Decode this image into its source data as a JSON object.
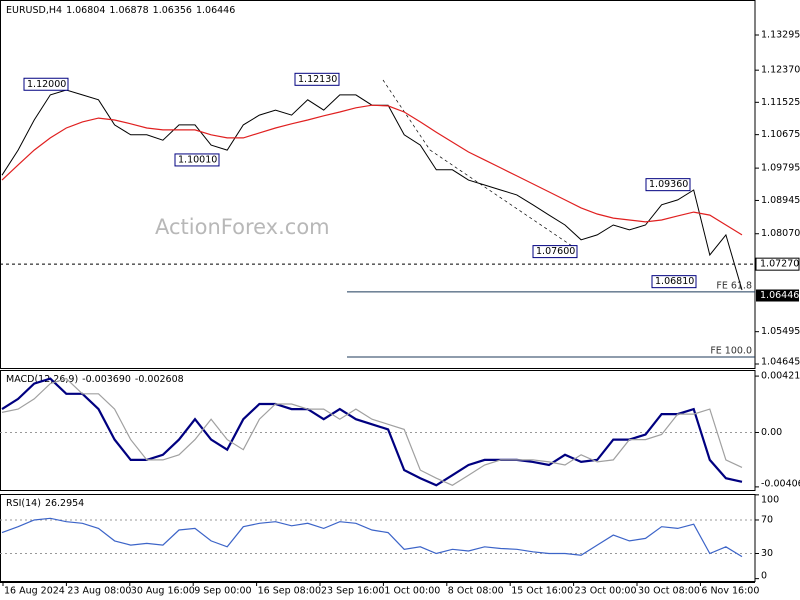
{
  "chart_data": [
    {
      "type": "line",
      "title": "EURUSD,H4",
      "ohlc": [
        1.06804,
        1.06878,
        1.06356,
        1.06446
      ],
      "watermark": "ActionForex.com",
      "ylim": [
        1.0454,
        1.14215
      ],
      "yticks": [
        1.13295,
        {
          "value": 1.1237,
          "label": "1.12370"
        },
        1.11525,
        1.10675,
        1.09795,
        1.08945,
        {
          "value": 1.0807,
          "label": "1.08070"
        },
        1.05495,
        1.04645
      ],
      "level_lines": [
        {
          "value": 1.0727,
          "label": "1.07270"
        }
      ],
      "fe_levels": [
        {
          "value": 1.0654,
          "label": "FE 61.8"
        },
        {
          "value": 1.0483,
          "label": "FE 100.0"
        }
      ],
      "annotations": [
        {
          "value": 1.12,
          "label": "1.12000"
        },
        {
          "value": 1.1213,
          "label": "1.12130"
        },
        {
          "value": 1.1001,
          "label": "1.10010"
        },
        {
          "value": 1.076,
          "label": "1.07600"
        },
        {
          "value": 1.0936,
          "label": "1.09360"
        },
        {
          "value": 1.0681,
          "label": "1.06810"
        }
      ],
      "series": [
        {
          "name": "EURUSD",
          "color": "#000000",
          "values": [
            1.0961,
            1.1027,
            1.1106,
            1.1172,
            1.1185,
            1.1172,
            1.1159,
            1.1093,
            1.1067,
            1.1067,
            1.1053,
            1.1093,
            1.1093,
            1.104,
            1.1027,
            1.1093,
            1.1119,
            1.1132,
            1.1119,
            1.1159,
            1.1132,
            1.1172,
            1.1172,
            1.1145,
            1.1145,
            1.1067,
            1.104,
            1.0975,
            1.0975,
            1.0948,
            1.0935,
            1.0922,
            1.0909,
            1.0883,
            1.0856,
            1.083,
            1.0791,
            1.0804,
            1.083,
            1.0817,
            1.083,
            1.0883,
            1.0896,
            1.0922,
            1.0751,
            1.0804,
            1.0659
          ]
        },
        {
          "name": "MA",
          "color": "#e02020",
          "values": [
            1.0948,
            1.0988,
            1.1027,
            1.1059,
            1.1085,
            1.1101,
            1.1111,
            1.1106,
            1.1096,
            1.1085,
            1.108,
            1.108,
            1.108,
            1.1067,
            1.1059,
            1.1059,
            1.1072,
            1.1085,
            1.1096,
            1.1106,
            1.1117,
            1.1127,
            1.1138,
            1.1145,
            1.1143,
            1.1127,
            1.1101,
            1.1074,
            1.1048,
            1.1022,
            1.1001,
            1.098,
            1.0959,
            1.0938,
            1.0917,
            1.0896,
            1.0875,
            1.0859,
            1.0848,
            1.0843,
            1.0838,
            1.0843,
            1.0854,
            1.0864,
            1.0856,
            1.083,
            1.0804
          ]
        }
      ]
    },
    {
      "type": "line",
      "title": "MACD(12,26,9)",
      "readouts": [
        {
          "value": -0.00369,
          "label": "-0.003690"
        },
        -0.002608
      ],
      "ylim": [
        -0.0043,
        0.00467
      ],
      "yticks": [
        0.004215,
        {
          "value": 0,
          "label": "0.00"
        },
        -0.004067
      ],
      "series": [
        {
          "name": "MACD",
          "color": "#000080",
          "values": [
            0.00175,
            0.00251,
            0.00365,
            0.00403,
            0.00289,
            0.00289,
            0.00175,
            -0.00053,
            -0.00205,
            -0.00205,
            -0.00167,
            -0.00053,
            0.00099,
            -0.00053,
            -0.00129,
            0.00099,
            0.00213,
            0.00213,
            0.00175,
            0.00175,
            0.00099,
            0.00175,
            0.00099,
            0.00061,
            0.00023,
            -0.00281,
            -0.00342,
            -0.00395,
            -0.00319,
            -0.00243,
            -0.00205,
            -0.00205,
            -0.00205,
            -0.0022,
            -0.00243,
            -0.00167,
            -0.0022,
            -0.00205,
            -0.00053,
            -0.00053,
            -0.00015,
            0.00137,
            0.00137,
            0.00175,
            -0.00205,
            -0.00342,
            -0.00369
          ]
        },
        {
          "name": "Signal",
          "color": "#a0a0a0",
          "values": [
            0.0015,
            0.00175,
            0.00251,
            0.00365,
            0.00403,
            0.00289,
            0.00289,
            0.00175,
            -0.00053,
            -0.00205,
            -0.00205,
            -0.00167,
            -0.00053,
            0.00099,
            -0.00053,
            -0.00129,
            0.00099,
            0.00213,
            0.00213,
            0.00175,
            0.00175,
            0.00099,
            0.00175,
            0.00099,
            0.00061,
            0.00023,
            -0.00281,
            -0.00342,
            -0.00395,
            -0.00319,
            -0.00243,
            -0.00205,
            -0.00205,
            -0.00205,
            -0.0022,
            -0.00243,
            -0.00167,
            -0.0022,
            -0.00205,
            -0.00053,
            -0.00053,
            -0.00015,
            0.00137,
            0.00137,
            0.00175,
            -0.00205,
            -0.002608
          ]
        }
      ]
    },
    {
      "type": "line",
      "title": "RSI(14)",
      "readouts": [
        26.2954
      ],
      "ylim": [
        -4,
        101
      ],
      "yticks": [
        100,
        70,
        30,
        0
      ],
      "dashed_levels": [
        70,
        30
      ],
      "xticks": [
        "16 Aug 2024",
        "23 Aug 08:00",
        "30 Aug 16:00",
        "9 Sep 00:00",
        "16 Sep 08:00",
        "23 Sep 16:00",
        "1 Oct 00:00",
        "8 Oct 08:00",
        "15 Oct 16:00",
        "23 Oct 00:00",
        "30 Oct 08:00",
        "6 Nov 16:00"
      ],
      "series": [
        {
          "name": "RSI",
          "color": "#3c64c8",
          "values": [
            55,
            62,
            70,
            72,
            68,
            66,
            60,
            45,
            40,
            42,
            40,
            58,
            60,
            45,
            38,
            62,
            66,
            68,
            63,
            66,
            60,
            68,
            66,
            58,
            55,
            35,
            38,
            30,
            35,
            33,
            38,
            36,
            35,
            32,
            30,
            30,
            28,
            40,
            52,
            45,
            48,
            62,
            60,
            65,
            30,
            38,
            26.2954
          ]
        }
      ]
    }
  ]
}
